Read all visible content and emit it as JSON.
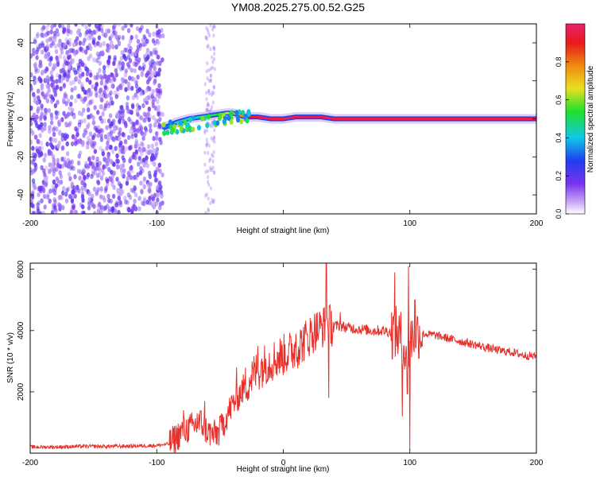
{
  "title": "YM08.2025.275.00.52.G25",
  "colors": {
    "spectrogram_background": "#ffffff",
    "cloud": "#7a33ee",
    "line_trace": "#e8302b",
    "axis": "#000000"
  },
  "chart_data": [
    {
      "type": "heatmap",
      "title": "YM08.2025.275.00.52.G25",
      "xlabel": "Height of straight line (km)",
      "ylabel": "Frequency (Hz)",
      "xlim": [
        -200,
        200
      ],
      "ylim": [
        -50,
        50
      ],
      "x_ticks": [
        -200,
        -100,
        0,
        100,
        200
      ],
      "x_tick_labels": [
        "-200",
        "-100",
        "",
        "100",
        "200"
      ],
      "y_ticks": [
        -40,
        -20,
        0,
        20,
        40
      ],
      "y_tick_labels": [
        "-40",
        "-20",
        "0",
        "20",
        "40"
      ],
      "colorbar": {
        "label": "Normalized spectral amplitude",
        "range": [
          0,
          1
        ],
        "ticks": [
          0.0,
          0.2,
          0.4,
          0.6,
          0.8
        ],
        "tick_labels": [
          "0.0",
          "0.2",
          "0.4",
          "0.6",
          "0.8"
        ],
        "colormap": [
          "#ffffff",
          "#7a33ee",
          "#1f3df0",
          "#10c8e8",
          "#1fe02a",
          "#e8e020",
          "#f08a10",
          "#e81a1a",
          "#e8206e"
        ]
      },
      "ridge": {
        "x": [
          -95,
          -85,
          -75,
          -65,
          -55,
          -45,
          -40,
          -35,
          -30,
          -20,
          -10,
          0,
          10,
          20,
          30,
          40,
          60,
          80,
          90,
          100,
          120,
          150,
          200
        ],
        "frequency": [
          -5,
          -2,
          0,
          1,
          2,
          3,
          3,
          2,
          1,
          1,
          0,
          0,
          1,
          1,
          1,
          0,
          0,
          0,
          0,
          0,
          0,
          0,
          0
        ],
        "amplitude": [
          0.3,
          0.4,
          0.4,
          0.45,
          0.5,
          0.6,
          0.7,
          0.75,
          0.9,
          0.95,
          0.95,
          0.95,
          0.95,
          0.95,
          0.95,
          0.95,
          0.95,
          0.95,
          0.95,
          0.95,
          0.95,
          0.95,
          0.9
        ]
      },
      "scatter_region": {
        "x": [
          -200,
          -95
        ],
        "frequency": [
          -50,
          50
        ],
        "amplitude": [
          0.0,
          0.25
        ]
      },
      "grid": false
    },
    {
      "type": "line",
      "xlabel": "Height of straight line (km)",
      "ylabel": "SNR (10 * v/v)",
      "xlim": [
        -200,
        200
      ],
      "ylim": [
        0,
        6200
      ],
      "x_ticks": [
        -200,
        -100,
        0,
        100,
        200
      ],
      "x_tick_labels": [
        "-200",
        "-100",
        "0",
        "100",
        "200"
      ],
      "y_ticks": [
        2000,
        4000,
        6000
      ],
      "y_tick_labels": [
        "2000",
        "4000",
        "6000"
      ],
      "grid": false,
      "series": [
        {
          "x": [
            -200,
            -180,
            -160,
            -140,
            -120,
            -100,
            -90,
            -85,
            -80,
            -75,
            -70,
            -65,
            -60,
            -55,
            -50,
            -45,
            -40,
            -35,
            -30,
            -25,
            -20,
            -15,
            -10,
            -5,
            0,
            5,
            10,
            15,
            20,
            25,
            30,
            35,
            40,
            45,
            50,
            60,
            70,
            80,
            85,
            90,
            95,
            98,
            100,
            102,
            105,
            110,
            120,
            130,
            140,
            150,
            160,
            170,
            180,
            190,
            200
          ],
          "values": [
            200,
            200,
            220,
            220,
            230,
            250,
            300,
            500,
            700,
            800,
            900,
            1000,
            700,
            600,
            700,
            1200,
            1600,
            1900,
            2200,
            2500,
            2700,
            2900,
            3000,
            3100,
            3200,
            3300,
            3400,
            3600,
            3800,
            4000,
            4100,
            4200,
            4150,
            4150,
            4100,
            4050,
            4000,
            4000,
            3950,
            3900,
            3700,
            2500,
            3500,
            3900,
            3950,
            3900,
            3850,
            3750,
            3650,
            3550,
            3450,
            3350,
            3300,
            3200,
            3150
          ],
          "spikes": [
            {
              "x": -79,
              "value": 1400
            },
            {
              "x": -68,
              "value": 1300
            },
            {
              "x": -62,
              "value": 1700
            },
            {
              "x": -50,
              "value": 1200
            },
            {
              "x": -37,
              "value": 2800
            },
            {
              "x": -20,
              "value": 3500
            },
            {
              "x": 10,
              "value": 3900
            },
            {
              "x": 25,
              "value": 4200
            },
            {
              "x": 34,
              "value": 6200
            },
            {
              "x": 36,
              "value": 1800
            },
            {
              "x": 45,
              "value": 4600
            },
            {
              "x": 88,
              "value": 5900
            },
            {
              "x": 94,
              "value": 1200
            },
            {
              "x": 99,
              "value": 6100
            },
            {
              "x": 100,
              "value": 100
            },
            {
              "x": 104,
              "value": 5000
            }
          ]
        }
      ]
    }
  ]
}
